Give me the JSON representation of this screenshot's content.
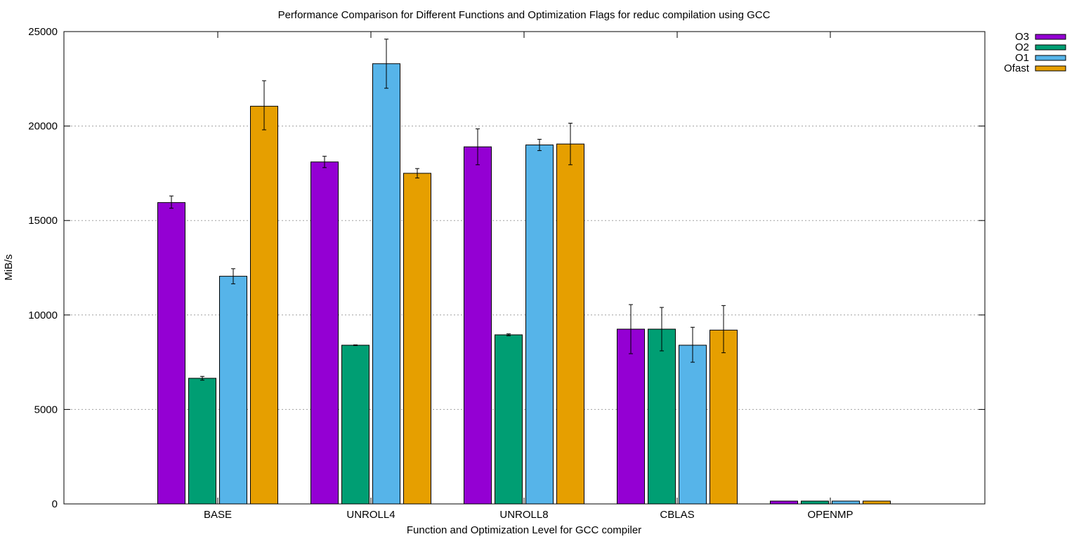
{
  "chart_data": {
    "type": "bar",
    "title": "Performance Comparison for Different Functions and Optimization Flags for reduc compilation using GCC",
    "xlabel": "Function and Optimization Level for GCC compiler",
    "ylabel": "MiB/s",
    "ylim": [
      0,
      25000
    ],
    "yticks": [
      0,
      5000,
      10000,
      15000,
      20000,
      25000
    ],
    "categories": [
      "BASE",
      "UNROLL4",
      "UNROLL8",
      "CBLAS",
      "OPENMP"
    ],
    "grid": true,
    "legend_position": "top-right-outside",
    "series": [
      {
        "name": "O3",
        "color": "#9400d3",
        "values": [
          15950,
          18100,
          18900,
          9250,
          150
        ],
        "err_low": [
          15650,
          17800,
          17950,
          7950,
          150
        ],
        "err_high": [
          16300,
          18400,
          19850,
          10550,
          150
        ]
      },
      {
        "name": "O2",
        "color": "#009e73",
        "values": [
          6650,
          8400,
          8950,
          9250,
          150
        ],
        "err_low": [
          6550,
          8380,
          8900,
          8100,
          150
        ],
        "err_high": [
          6750,
          8420,
          9000,
          10400,
          150
        ]
      },
      {
        "name": "O1",
        "color": "#56b4e9",
        "values": [
          12050,
          23300,
          19000,
          8400,
          150
        ],
        "err_low": [
          11650,
          22000,
          18700,
          7500,
          150
        ],
        "err_high": [
          12450,
          24600,
          19300,
          9350,
          150
        ]
      },
      {
        "name": "Ofast",
        "color": "#e69f00",
        "values": [
          21050,
          17500,
          19050,
          9200,
          150
        ],
        "err_low": [
          19800,
          17250,
          17950,
          8000,
          150
        ],
        "err_high": [
          22400,
          17750,
          20150,
          10500,
          150
        ]
      }
    ]
  }
}
